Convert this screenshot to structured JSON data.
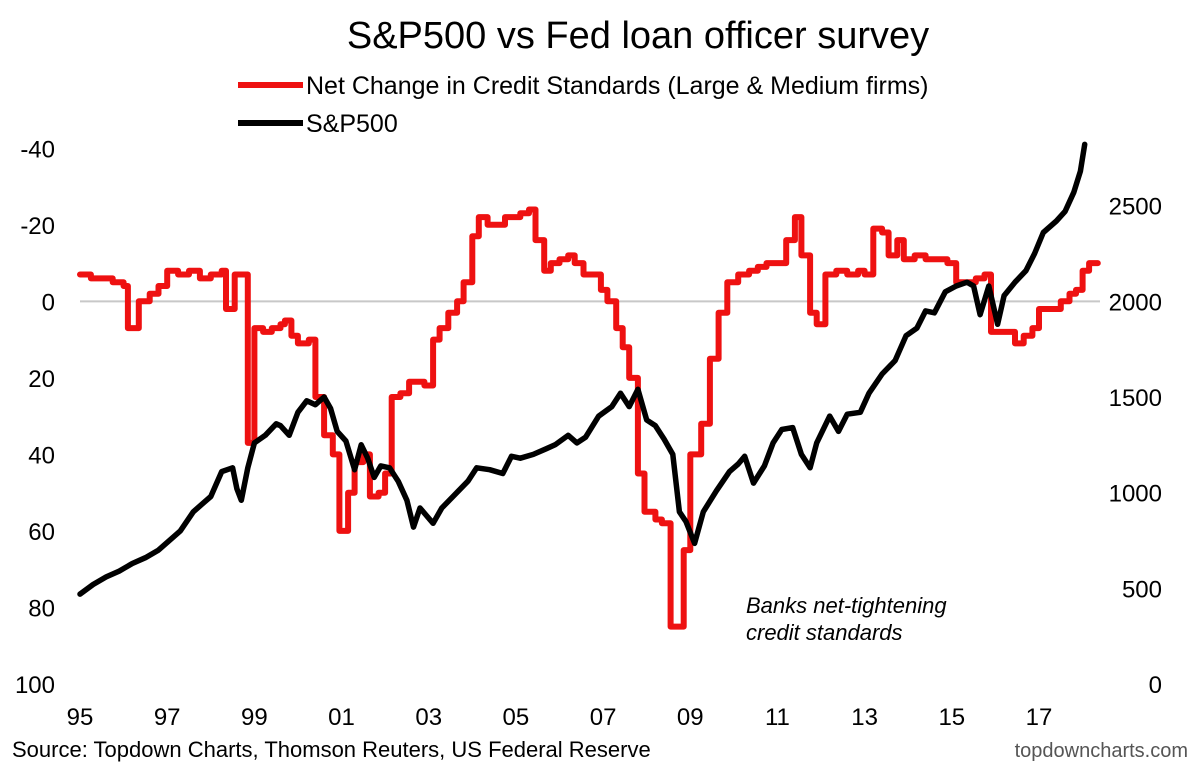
{
  "chart_data": {
    "type": "line",
    "title": "S&P500 vs Fed loan officer survey",
    "x_ticks": [
      "95",
      "97",
      "99",
      "01",
      "03",
      "05",
      "07",
      "09",
      "11",
      "13",
      "15",
      "17"
    ],
    "x_range": [
      1995,
      2018.4
    ],
    "y_left": {
      "reversed": true,
      "range": [
        -50,
        100
      ],
      "ticks": [
        -40,
        -20,
        0,
        20,
        40,
        60,
        80,
        100
      ],
      "tick_labels": [
        "-40",
        "-20",
        "0",
        "20",
        "40",
        "60",
        "80",
        "100"
      ]
    },
    "y_right": {
      "range": [
        0,
        3000
      ],
      "ticks": [
        0,
        500,
        1000,
        1500,
        2000,
        2500
      ],
      "tick_labels": [
        "0",
        "500",
        "1000",
        "1500",
        "2000",
        "2500"
      ]
    },
    "zero_line": 0,
    "grid": false,
    "legend_position": "top-center",
    "series": [
      {
        "name": "Net Change in Credit Standards (Large & Medium firms)",
        "color": "#ee1111",
        "axis": "left",
        "step": true,
        "points": [
          [
            1995.0,
            -7
          ],
          [
            1995.25,
            -6
          ],
          [
            1995.75,
            -5
          ],
          [
            1996.0,
            -4
          ],
          [
            1996.1,
            7
          ],
          [
            1996.35,
            0
          ],
          [
            1996.6,
            -2
          ],
          [
            1996.8,
            -4
          ],
          [
            1997.0,
            -8
          ],
          [
            1997.25,
            -7
          ],
          [
            1997.5,
            -8
          ],
          [
            1997.75,
            -6
          ],
          [
            1998.0,
            -7
          ],
          [
            1998.25,
            -8
          ],
          [
            1998.35,
            2
          ],
          [
            1998.55,
            -7
          ],
          [
            1998.75,
            -7
          ],
          [
            1998.85,
            37
          ],
          [
            1999.0,
            7
          ],
          [
            1999.2,
            8
          ],
          [
            1999.4,
            7
          ],
          [
            1999.6,
            6
          ],
          [
            1999.7,
            5
          ],
          [
            1999.85,
            9
          ],
          [
            2000.0,
            11
          ],
          [
            2000.25,
            10
          ],
          [
            2000.4,
            25
          ],
          [
            2000.6,
            35
          ],
          [
            2000.8,
            40
          ],
          [
            2000.95,
            60
          ],
          [
            2001.15,
            50
          ],
          [
            2001.3,
            42
          ],
          [
            2001.5,
            40
          ],
          [
            2001.65,
            51
          ],
          [
            2001.85,
            50
          ],
          [
            2002.0,
            45
          ],
          [
            2002.15,
            25
          ],
          [
            2002.35,
            24
          ],
          [
            2002.55,
            21
          ],
          [
            2002.75,
            21
          ],
          [
            2002.9,
            22
          ],
          [
            2003.1,
            10
          ],
          [
            2003.25,
            7
          ],
          [
            2003.45,
            3
          ],
          [
            2003.65,
            0
          ],
          [
            2003.8,
            -5
          ],
          [
            2004.0,
            -17
          ],
          [
            2004.15,
            -22
          ],
          [
            2004.35,
            -20
          ],
          [
            2004.6,
            -20
          ],
          [
            2004.75,
            -22
          ],
          [
            2004.9,
            -22
          ],
          [
            2005.1,
            -23
          ],
          [
            2005.3,
            -24
          ],
          [
            2005.45,
            -16
          ],
          [
            2005.65,
            -8
          ],
          [
            2005.8,
            -10
          ],
          [
            2006.0,
            -11
          ],
          [
            2006.2,
            -12
          ],
          [
            2006.35,
            -10
          ],
          [
            2006.55,
            -7
          ],
          [
            2006.8,
            -7
          ],
          [
            2006.95,
            -3
          ],
          [
            2007.1,
            0
          ],
          [
            2007.3,
            7
          ],
          [
            2007.45,
            12
          ],
          [
            2007.6,
            20
          ],
          [
            2007.8,
            45
          ],
          [
            2007.95,
            55
          ],
          [
            2008.2,
            57
          ],
          [
            2008.35,
            58
          ],
          [
            2008.55,
            85
          ],
          [
            2008.85,
            65
          ],
          [
            2009.0,
            40
          ],
          [
            2009.25,
            32
          ],
          [
            2009.45,
            15
          ],
          [
            2009.65,
            3
          ],
          [
            2009.85,
            -5
          ],
          [
            2010.1,
            -7
          ],
          [
            2010.35,
            -8
          ],
          [
            2010.55,
            -9
          ],
          [
            2010.75,
            -10
          ],
          [
            2011.0,
            -10
          ],
          [
            2011.2,
            -16
          ],
          [
            2011.4,
            -22
          ],
          [
            2011.55,
            -12
          ],
          [
            2011.75,
            3
          ],
          [
            2011.9,
            6
          ],
          [
            2012.1,
            -7
          ],
          [
            2012.35,
            -8
          ],
          [
            2012.6,
            -7
          ],
          [
            2012.85,
            -8
          ],
          [
            2013.0,
            -7
          ],
          [
            2013.2,
            -19
          ],
          [
            2013.4,
            -18
          ],
          [
            2013.55,
            -12
          ],
          [
            2013.75,
            -16
          ],
          [
            2013.9,
            -11
          ],
          [
            2014.15,
            -12
          ],
          [
            2014.4,
            -11
          ],
          [
            2014.65,
            -11
          ],
          [
            2014.9,
            -10
          ],
          [
            2015.1,
            -5
          ],
          [
            2015.35,
            -5
          ],
          [
            2015.55,
            -6
          ],
          [
            2015.75,
            -7
          ],
          [
            2015.9,
            8
          ],
          [
            2016.2,
            8
          ],
          [
            2016.45,
            11
          ],
          [
            2016.65,
            9
          ],
          [
            2016.85,
            7
          ],
          [
            2017.0,
            2
          ],
          [
            2017.25,
            2
          ],
          [
            2017.5,
            0
          ],
          [
            2017.7,
            -2
          ],
          [
            2017.85,
            -3
          ],
          [
            2018.0,
            -8
          ],
          [
            2018.15,
            -10
          ],
          [
            2018.35,
            -10
          ]
        ]
      },
      {
        "name": "S&P500",
        "color": "#000000",
        "axis": "right",
        "step": false,
        "points": [
          [
            1995.0,
            470
          ],
          [
            1995.3,
            520
          ],
          [
            1995.6,
            560
          ],
          [
            1995.9,
            590
          ],
          [
            1996.2,
            630
          ],
          [
            1996.5,
            660
          ],
          [
            1996.8,
            700
          ],
          [
            1997.0,
            740
          ],
          [
            1997.3,
            800
          ],
          [
            1997.6,
            900
          ],
          [
            1997.8,
            940
          ],
          [
            1998.0,
            980
          ],
          [
            1998.25,
            1110
          ],
          [
            1998.5,
            1130
          ],
          [
            1998.6,
            1020
          ],
          [
            1998.7,
            960
          ],
          [
            1998.85,
            1130
          ],
          [
            1999.0,
            1260
          ],
          [
            1999.25,
            1300
          ],
          [
            1999.5,
            1360
          ],
          [
            1999.6,
            1350
          ],
          [
            1999.8,
            1300
          ],
          [
            2000.0,
            1420
          ],
          [
            2000.2,
            1480
          ],
          [
            2000.4,
            1460
          ],
          [
            2000.6,
            1500
          ],
          [
            2000.75,
            1440
          ],
          [
            2000.9,
            1320
          ],
          [
            2001.1,
            1270
          ],
          [
            2001.3,
            1120
          ],
          [
            2001.45,
            1250
          ],
          [
            2001.6,
            1180
          ],
          [
            2001.75,
            1080
          ],
          [
            2001.9,
            1140
          ],
          [
            2002.1,
            1130
          ],
          [
            2002.3,
            1060
          ],
          [
            2002.5,
            960
          ],
          [
            2002.65,
            820
          ],
          [
            2002.8,
            920
          ],
          [
            2002.95,
            880
          ],
          [
            2003.1,
            840
          ],
          [
            2003.3,
            920
          ],
          [
            2003.6,
            990
          ],
          [
            2003.9,
            1060
          ],
          [
            2004.1,
            1130
          ],
          [
            2004.4,
            1120
          ],
          [
            2004.7,
            1100
          ],
          [
            2004.9,
            1190
          ],
          [
            2005.1,
            1180
          ],
          [
            2005.4,
            1200
          ],
          [
            2005.7,
            1230
          ],
          [
            2005.9,
            1250
          ],
          [
            2006.2,
            1300
          ],
          [
            2006.4,
            1260
          ],
          [
            2006.6,
            1290
          ],
          [
            2006.9,
            1400
          ],
          [
            2007.2,
            1450
          ],
          [
            2007.4,
            1520
          ],
          [
            2007.6,
            1450
          ],
          [
            2007.8,
            1540
          ],
          [
            2008.0,
            1380
          ],
          [
            2008.2,
            1350
          ],
          [
            2008.4,
            1280
          ],
          [
            2008.6,
            1200
          ],
          [
            2008.75,
            900
          ],
          [
            2008.9,
            850
          ],
          [
            2009.1,
            735
          ],
          [
            2009.3,
            900
          ],
          [
            2009.6,
            1010
          ],
          [
            2009.9,
            1110
          ],
          [
            2010.1,
            1150
          ],
          [
            2010.25,
            1190
          ],
          [
            2010.45,
            1050
          ],
          [
            2010.7,
            1140
          ],
          [
            2010.9,
            1260
          ],
          [
            2011.1,
            1330
          ],
          [
            2011.35,
            1340
          ],
          [
            2011.55,
            1200
          ],
          [
            2011.75,
            1130
          ],
          [
            2011.9,
            1260
          ],
          [
            2012.2,
            1400
          ],
          [
            2012.4,
            1320
          ],
          [
            2012.6,
            1410
          ],
          [
            2012.9,
            1420
          ],
          [
            2013.1,
            1520
          ],
          [
            2013.4,
            1620
          ],
          [
            2013.7,
            1690
          ],
          [
            2013.95,
            1820
          ],
          [
            2014.2,
            1860
          ],
          [
            2014.4,
            1950
          ],
          [
            2014.6,
            1940
          ],
          [
            2014.85,
            2050
          ],
          [
            2015.1,
            2080
          ],
          [
            2015.35,
            2100
          ],
          [
            2015.5,
            2080
          ],
          [
            2015.65,
            1930
          ],
          [
            2015.85,
            2080
          ],
          [
            2016.05,
            1880
          ],
          [
            2016.2,
            2030
          ],
          [
            2016.45,
            2100
          ],
          [
            2016.7,
            2160
          ],
          [
            2016.9,
            2250
          ],
          [
            2017.1,
            2360
          ],
          [
            2017.4,
            2420
          ],
          [
            2017.6,
            2470
          ],
          [
            2017.8,
            2570
          ],
          [
            2017.95,
            2680
          ],
          [
            2018.05,
            2820
          ]
        ]
      }
    ],
    "annotations": [
      "Banks net-tightening",
      "credit standards"
    ],
    "source": "Source: Topdown Charts, Thomson Reuters, US Federal Reserve",
    "brand": "topdowncharts.com"
  }
}
